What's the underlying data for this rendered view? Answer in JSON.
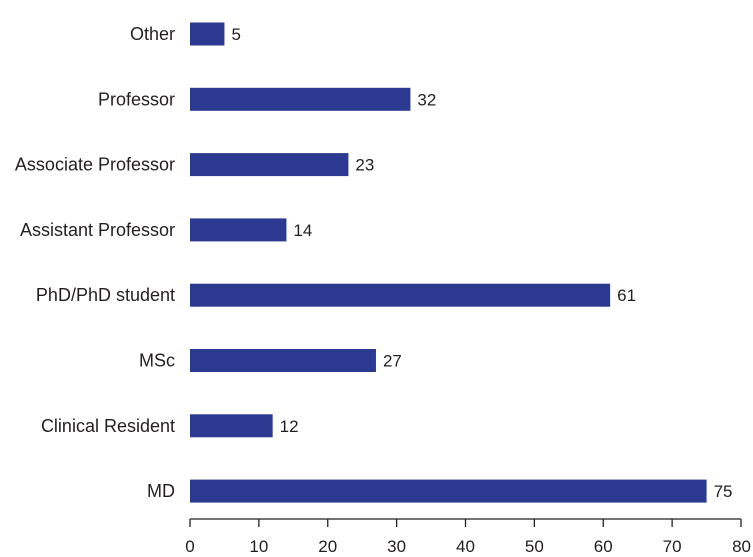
{
  "chart_data": {
    "type": "bar",
    "orientation": "horizontal",
    "categories": [
      "Other",
      "Professor",
      "Associate Professor",
      "Assistant Professor",
      "PhD/PhD student",
      "MSc",
      "Clinical Resident",
      "MD"
    ],
    "values": [
      5,
      32,
      23,
      14,
      61,
      27,
      12,
      75
    ],
    "xlim": [
      0,
      80
    ],
    "xticks": [
      0,
      10,
      20,
      30,
      40,
      50,
      60,
      70,
      80
    ],
    "title": "",
    "xlabel": "",
    "ylabel": "",
    "grid": false,
    "legend": "none",
    "bar_color": "#2b3990",
    "axis_color": "#231f20",
    "text_color": "#231f20"
  }
}
